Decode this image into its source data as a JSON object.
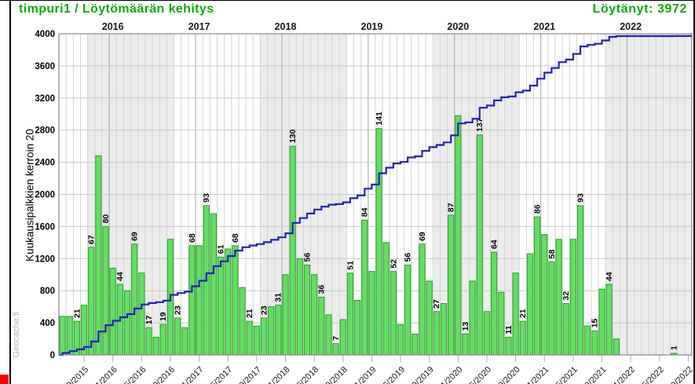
{
  "header": {
    "title": "timpuri1 / Löytömäärän kehitys",
    "found_label": "Löytänyt: 3972"
  },
  "watermark": "Geocache.fi",
  "chart_data": {
    "type": "bar",
    "description": "Monthly geocache finds (green bars, axis value = finds x 20) with cumulative finds line (blue), geocache.fi style",
    "y_axis_title": "Kuukausipalkkien kerroin 20",
    "y_min": 0,
    "y_max": 4000,
    "y_step": 400,
    "bar_value_multiplier": 20,
    "start_month": "2015-06",
    "months_shown": 88,
    "year_labels": [
      "2016",
      "2017",
      "2018",
      "2019",
      "2020",
      "2021",
      "2022"
    ],
    "x_tick_labels": [
      "9/2015",
      "1/2016",
      "5/2016",
      "9/2016",
      "1/2017",
      "5/2017",
      "9/2017",
      "1/2018",
      "5/2018",
      "9/2018",
      "1/2019",
      "5/2019",
      "9/2019",
      "1/2020",
      "5/2020",
      "9/2020",
      "1/2021",
      "5/2021",
      "9/2021",
      "1/2022",
      "5/2022",
      "9/2022"
    ],
    "x_tick_start_index": 3,
    "x_tick_step": 4,
    "monthly_finds": [
      24,
      24,
      21,
      31,
      67,
      124,
      80,
      54,
      44,
      40,
      69,
      51,
      17,
      11,
      19,
      72,
      23,
      17,
      68,
      68,
      93,
      88,
      61,
      66,
      68,
      42,
      21,
      18,
      23,
      30,
      31,
      50,
      130,
      60,
      56,
      50,
      36,
      25,
      7,
      22,
      51,
      34,
      84,
      52,
      141,
      70,
      52,
      19,
      56,
      13,
      69,
      46,
      27,
      32,
      87,
      149,
      13,
      46,
      137,
      27,
      64,
      39,
      11,
      51,
      21,
      63,
      86,
      75,
      58,
      72,
      32,
      72,
      93,
      18,
      15,
      41,
      44,
      10,
      0,
      0,
      0,
      0,
      0,
      0,
      0,
      1
    ],
    "bar_label_rule": {
      "start": 2,
      "end": 76,
      "step": 2,
      "extra_indices": [
        85
      ]
    },
    "visible_bar_labels": [
      21,
      67,
      80,
      44,
      69,
      17,
      19,
      23,
      68,
      93,
      61,
      68,
      21,
      23,
      31,
      130,
      56,
      36,
      7,
      51,
      84,
      141,
      52,
      56,
      69,
      27,
      87,
      13,
      137,
      64,
      11,
      21,
      86,
      58,
      32,
      93,
      15,
      44,
      1
    ],
    "cumulative_total": 3972,
    "legend_position": "none",
    "grid": true,
    "colors": {
      "title_green": "#0FA80F",
      "bar_fill": "#63DE63",
      "bar_border": "#2E9E2E",
      "line_blue": "#2222B8",
      "band_gray": "#ECECEC",
      "grid_line": "#D4D4D4",
      "year_grid_line": "#A5A5A5",
      "frame": "#878787",
      "axis_text": "#1A1A1A"
    }
  }
}
